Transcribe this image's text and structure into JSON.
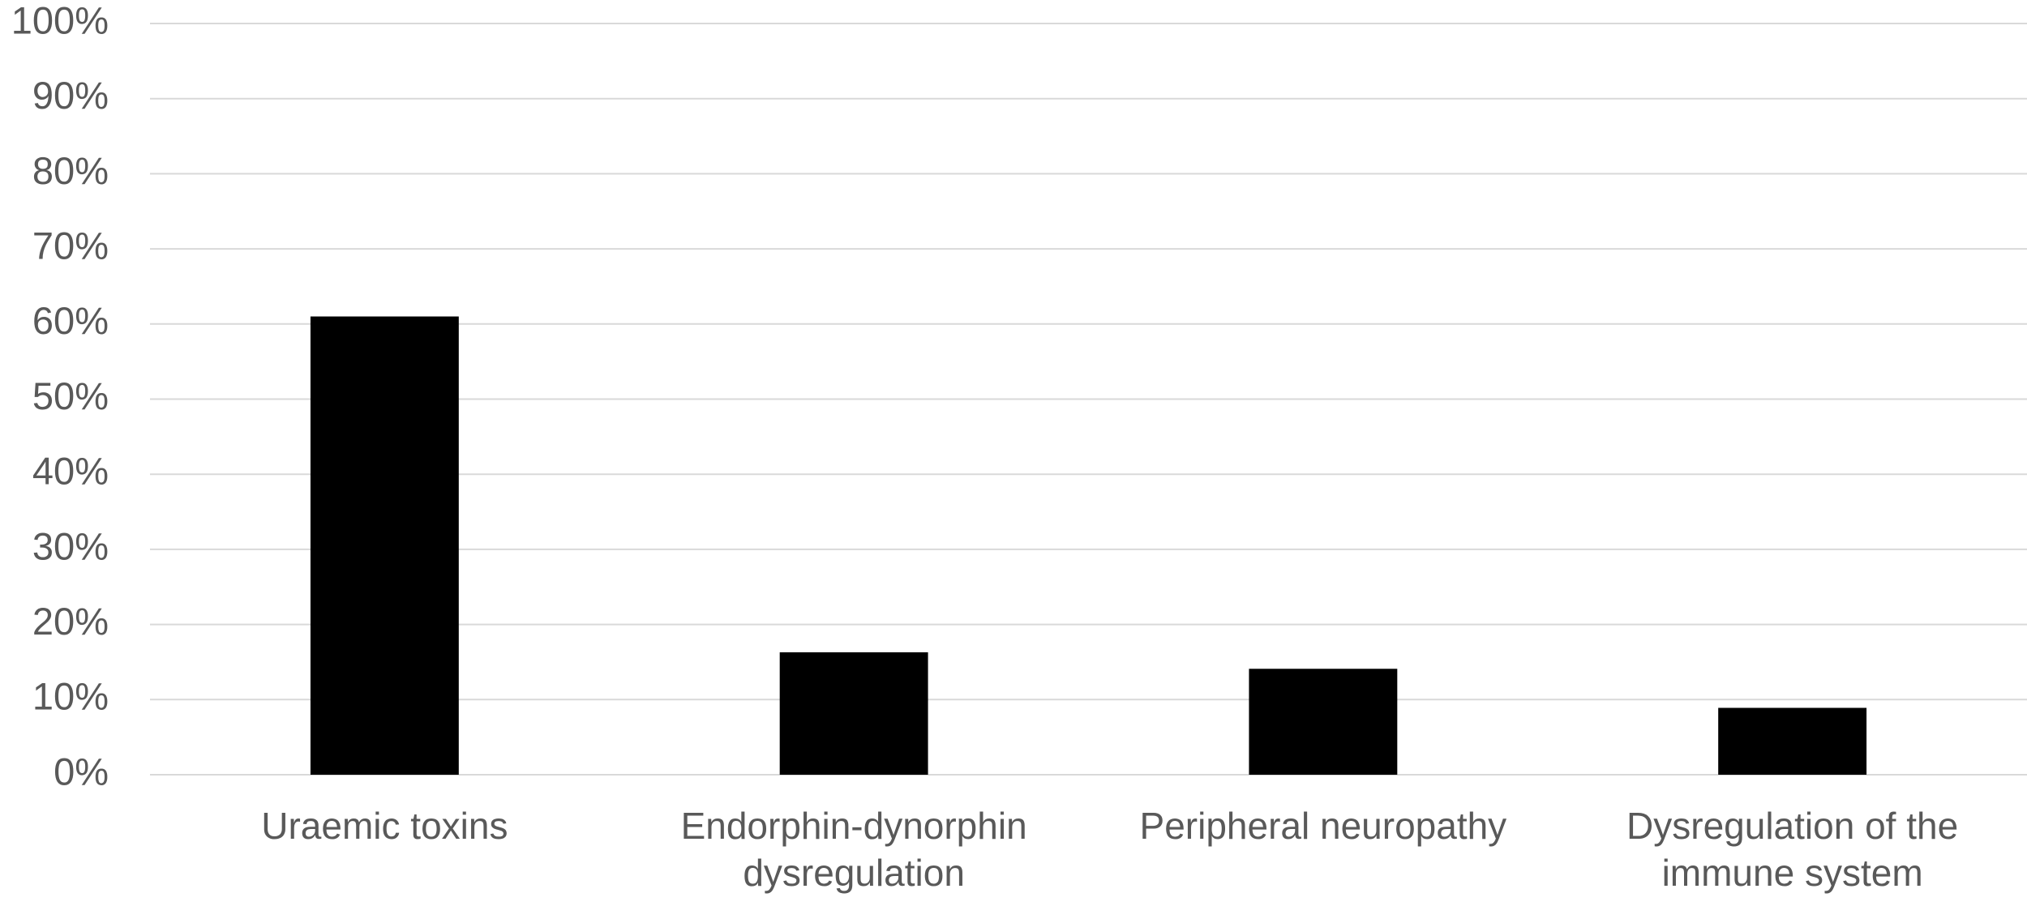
{
  "chart_data": {
    "type": "bar",
    "categories": [
      "Uraemic toxins",
      "Endorphin-dynorphin dysregulation",
      "Peripheral neuropathy",
      "Dysregulation of the immune system"
    ],
    "values": [
      61,
      16.3,
      14.1,
      8.9
    ],
    "color": "#000000",
    "ylim": [
      0,
      100
    ],
    "yticks": [
      {
        "value": 0,
        "label": "0%"
      },
      {
        "value": 10,
        "label": "10%"
      },
      {
        "value": 20,
        "label": "20%"
      },
      {
        "value": 30,
        "label": "30%"
      },
      {
        "value": 40,
        "label": "40%"
      },
      {
        "value": 50,
        "label": "50%"
      },
      {
        "value": 60,
        "label": "60%"
      },
      {
        "value": 70,
        "label": "70%"
      },
      {
        "value": 80,
        "label": "80%"
      },
      {
        "value": 90,
        "label": "90%"
      },
      {
        "value": 100,
        "label": "100%"
      }
    ],
    "grid": true
  }
}
